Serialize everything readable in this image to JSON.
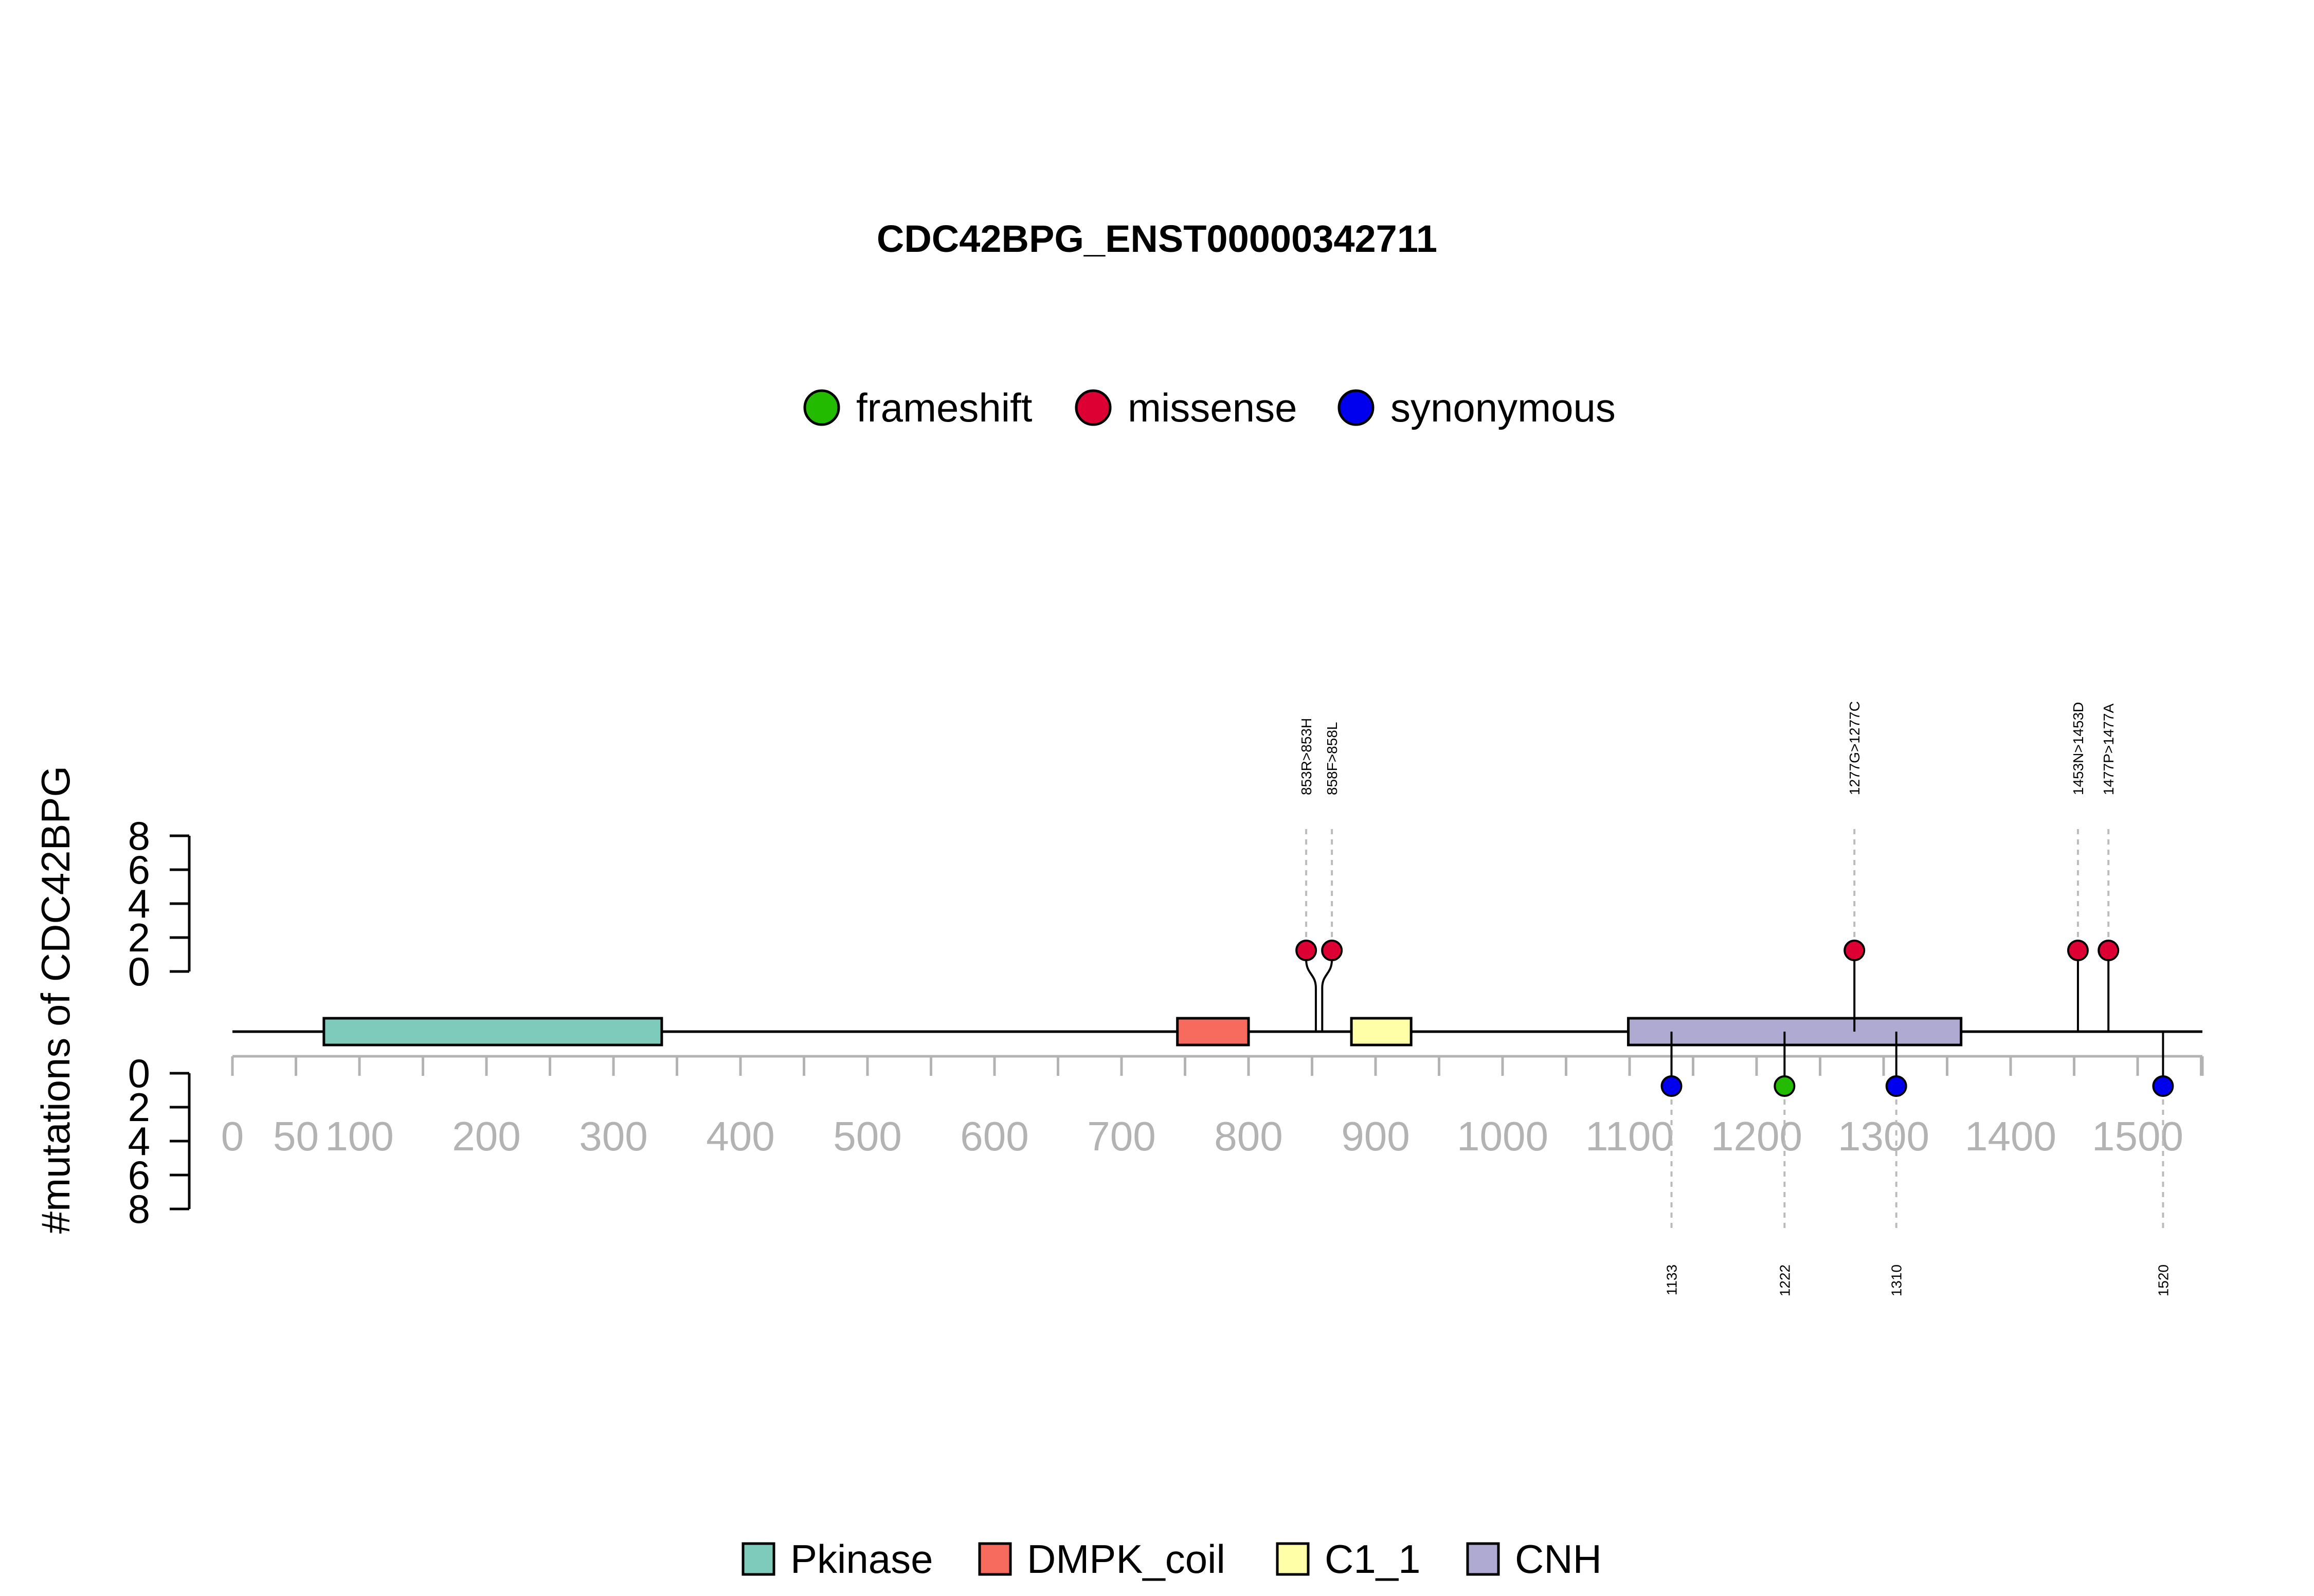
{
  "chart_data": {
    "type": "lollipop",
    "title": "CDC42BPG_ENST00000342711",
    "ylabel": "#mutations of CDC42BPG",
    "xlim": [
      0,
      1551
    ],
    "x_ticks": [
      0,
      50,
      100,
      200,
      300,
      400,
      500,
      600,
      700,
      800,
      900,
      1000,
      1100,
      1200,
      1300,
      1400,
      1500
    ],
    "y_ticks": [
      0,
      2,
      4,
      6,
      8
    ],
    "ylim": [
      0,
      8
    ],
    "mutation_legend": [
      {
        "name": "frameshift",
        "color": "#22bb00"
      },
      {
        "name": "missense",
        "color": "#dd0033"
      },
      {
        "name": "synonymous",
        "color": "#0000ee"
      }
    ],
    "domains": [
      {
        "name": "Pkinase",
        "start": 72,
        "end": 338,
        "color": "#7fcbbb"
      },
      {
        "name": "DMPK_coil",
        "start": 744,
        "end": 800,
        "color": "#f76a5e"
      },
      {
        "name": "C1_1",
        "start": 881,
        "end": 928,
        "color": "#ffffa8"
      },
      {
        "name": "CNH",
        "start": 1099,
        "end": 1361,
        "color": "#aeaad2"
      }
    ],
    "domain_legend": [
      "Pkinase",
      "DMPK_coil",
      "C1_1",
      "CNH"
    ],
    "mutations_top": [
      {
        "label": "853R>853H",
        "position": 853,
        "count": 1,
        "type": "missense"
      },
      {
        "label": "858F>858L",
        "position": 858,
        "count": 1,
        "type": "missense"
      },
      {
        "label": "1277G>1277C",
        "position": 1277,
        "count": 1,
        "type": "missense"
      },
      {
        "label": "1453N>1453D",
        "position": 1453,
        "count": 1,
        "type": "missense"
      },
      {
        "label": "1477P>1477A",
        "position": 1477,
        "count": 1,
        "type": "missense"
      }
    ],
    "mutations_bottom": [
      {
        "label": "1133",
        "position": 1133,
        "count": 1,
        "type": "synonymous"
      },
      {
        "label": "1222",
        "position": 1222,
        "count": 1,
        "type": "frameshift"
      },
      {
        "label": "1310",
        "position": 1310,
        "count": 1,
        "type": "synonymous"
      },
      {
        "label": "1520",
        "position": 1520,
        "count": 1,
        "type": "synonymous"
      }
    ]
  }
}
